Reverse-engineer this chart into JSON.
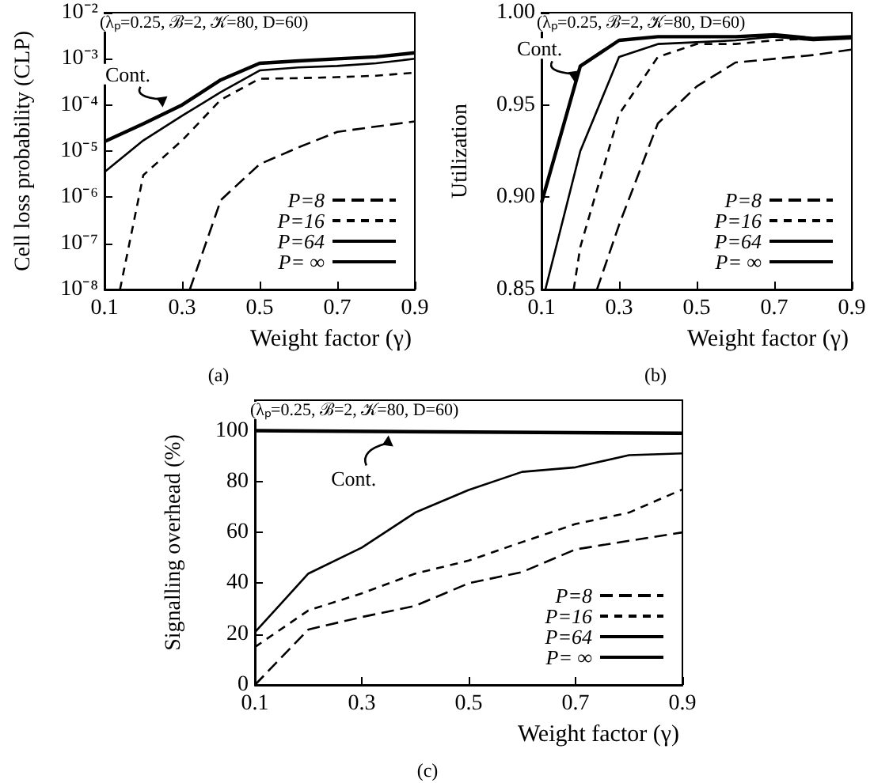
{
  "chart_data": [
    {
      "type": "line",
      "xlabel": "Weight factor (γ)",
      "ylabel": "Cell loss probability (CLP)",
      "log": "y",
      "legend": "bottom right",
      "line_style": "solid",
      "marker": "none",
      "x": [
        0.1,
        0.2,
        0.3,
        0.4,
        0.5,
        0.6,
        0.7,
        0.8,
        0.9
      ],
      "xlim": [
        0.1,
        0.9
      ],
      "xticks": [
        0.1,
        0.3,
        0.5,
        0.7,
        0.9
      ],
      "ylim": [
        1e-08,
        0.01
      ],
      "yticks": [
        {
          "value": 1e-08,
          "label": "10⁻⁸"
        },
        {
          "value": 1e-07,
          "label": "10⁻⁷"
        },
        {
          "value": 1e-06,
          "label": "10⁻⁶"
        },
        {
          "value": 1e-05,
          "label": "10⁻⁵"
        },
        {
          "value": 0.0001,
          "label": "10⁻⁴"
        },
        {
          "value": 0.001,
          "label": "10⁻³"
        },
        {
          "value": 0.01,
          "label": "10⁻²"
        }
      ],
      "annotations": [
        "(λₚ=0.25, ℬ=2, 𝒦=80, D=60)",
        {
          "text": "Cont.",
          "x": 0.25,
          "y": 7e-05
        },
        "(a)"
      ],
      "series": [
        {
          "name": "P=8",
          "color": "#000000",
          "line_style": "dashed",
          "x": [
            0.32,
            0.4,
            0.5,
            0.6,
            0.7,
            0.8,
            0.9
          ],
          "values": [
            1e-08,
            8.7e-07,
            5.2e-06,
            1.2e-05,
            2.6e-05,
            3.4e-05,
            4.4e-05
          ]
        },
        {
          "name": "P=16",
          "color": "#000000",
          "line_style": "dashed",
          "x": [
            0.14,
            0.2,
            0.3,
            0.4,
            0.5,
            0.6,
            0.7,
            0.8,
            0.9
          ],
          "values": [
            1e-08,
            3e-06,
            1.7e-05,
            0.00013,
            0.00037,
            0.00038,
            0.0004,
            0.00043,
            0.0005
          ]
        },
        {
          "name": "P=64",
          "color": "#000000",
          "values": [
            3.5e-06,
            1.7e-05,
            5.8e-05,
            0.00019,
            0.00056,
            0.00065,
            0.0007,
            0.0008,
            0.001
          ]
        },
        {
          "name": "P= ∞",
          "color": "#000000",
          "values": [
            1.6e-05,
            3.9e-05,
            0.0001,
            0.00035,
            0.0008,
            0.0009,
            0.001,
            0.0011,
            0.00135
          ]
        }
      ]
    },
    {
      "type": "line",
      "xlabel": "Weight factor (γ)",
      "ylabel": "Utilization",
      "legend": "bottom right",
      "line_style": "solid",
      "marker": "none",
      "x": [
        0.1,
        0.2,
        0.3,
        0.4,
        0.5,
        0.6,
        0.7,
        0.8,
        0.9
      ],
      "xlim": [
        0.1,
        0.9
      ],
      "xticks": [
        0.1,
        0.3,
        0.5,
        0.7,
        0.9
      ],
      "ylim": [
        0.85,
        1.0
      ],
      "yticks": [
        0.85,
        {
          "value": 0.9,
          "label": "0.90"
        },
        0.95,
        {
          "value": 1.0,
          "label": "1.00"
        }
      ],
      "annotations": [
        "(λₚ=0.25, ℬ=2, 𝒦=80, D=60)",
        {
          "text": "Cont.",
          "x": 0.185,
          "y": 0.96
        },
        "(b)"
      ],
      "series": [
        {
          "name": "P=8",
          "color": "#000000",
          "line_style": "dashed",
          "x": [
            0.243,
            0.3,
            0.4,
            0.5,
            0.6,
            0.7,
            0.8,
            0.9
          ],
          "values": [
            0.85,
            0.885,
            0.94,
            0.96,
            0.973,
            0.975,
            0.977,
            0.98
          ]
        },
        {
          "name": "P=16",
          "color": "#000000",
          "line_style": "dashed",
          "x": [
            0.183,
            0.2,
            0.3,
            0.4,
            0.5,
            0.6,
            0.7,
            0.8,
            0.9
          ],
          "values": [
            0.85,
            0.873,
            0.945,
            0.976,
            0.983,
            0.983,
            0.985,
            0.986,
            0.987
          ]
        },
        {
          "name": "P=64",
          "color": "#000000",
          "x": [
            0.11,
            0.2,
            0.3,
            0.4,
            0.5,
            0.6,
            0.7,
            0.8,
            0.9
          ],
          "values": [
            0.85,
            0.925,
            0.976,
            0.983,
            0.984,
            0.985,
            0.987,
            0.985,
            0.986
          ]
        },
        {
          "name": "P= ∞",
          "color": "#000000",
          "values": [
            0.897,
            0.971,
            0.985,
            0.987,
            0.987,
            0.987,
            0.988,
            0.986,
            0.987
          ]
        }
      ]
    },
    {
      "type": "line",
      "xlabel": "Weight factor (γ)",
      "ylabel": "Signalling overhead (%)",
      "legend": "bottom right",
      "line_style": "solid",
      "marker": "none",
      "x": [
        0.1,
        0.2,
        0.3,
        0.4,
        0.5,
        0.6,
        0.7,
        0.8,
        0.9
      ],
      "xlim": [
        0.1,
        0.9
      ],
      "xticks": [
        0.1,
        0.3,
        0.5,
        0.7,
        0.9
      ],
      "ylim": [
        0,
        112
      ],
      "yticks": [
        0,
        20,
        40,
        60,
        80,
        100
      ],
      "annotations": [
        "(λₚ=0.25, ℬ=2, 𝒦=80, D=60)",
        {
          "text": "Cont.",
          "x": 0.35,
          "y": 100
        },
        "(c)"
      ],
      "series": [
        {
          "name": "P=8",
          "color": "#000000",
          "line_style": "dashed",
          "values": [
            0,
            21.8,
            26.7,
            31.1,
            40,
            44.4,
            53.3,
            56.7,
            60
          ]
        },
        {
          "name": "P=16",
          "color": "#000000",
          "line_style": "dashed",
          "values": [
            14.9,
            29.3,
            36,
            43.8,
            48.9,
            56.2,
            63.3,
            67.8,
            76.9
          ]
        },
        {
          "name": "P=64",
          "color": "#000000",
          "values": [
            20.7,
            43.8,
            54,
            67.8,
            76.7,
            83.8,
            85.6,
            90.4,
            91.1
          ]
        },
        {
          "name": "P= ∞",
          "color": "#000000",
          "x": [
            0.1,
            0.9
          ],
          "values": [
            100,
            99
          ]
        }
      ]
    }
  ]
}
